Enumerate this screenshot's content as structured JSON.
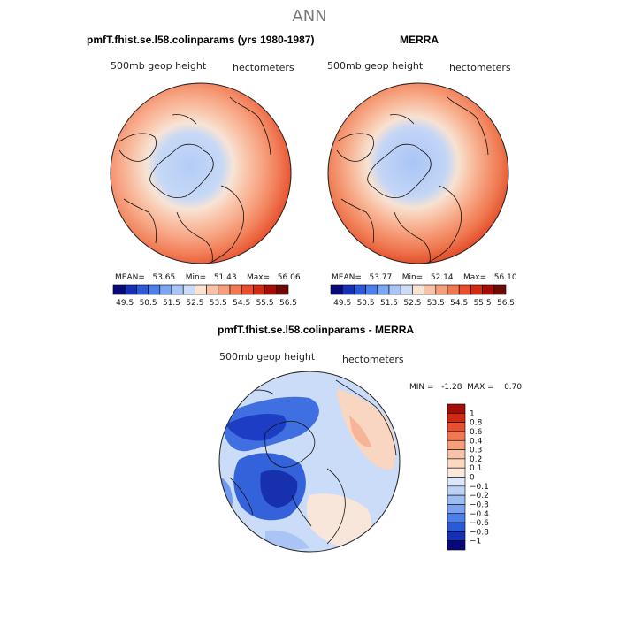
{
  "title": "ANN",
  "panels": [
    {
      "title": "pmfT.fhist.se.l58.colinparams (yrs 1980-1987)",
      "field_label": "500mb geop height",
      "units": "hectometers",
      "mean_label": "MEAN=",
      "mean": "53.65",
      "min_label": "Min=",
      "min": "51.43",
      "max_label": "Max=",
      "max": "56.06"
    },
    {
      "title": "MERRA",
      "field_label": "500mb geop height",
      "units": "hectometers",
      "mean_label": "MEAN=",
      "mean": "53.77",
      "min_label": "Min=",
      "min": "52.14",
      "max_label": "Max=",
      "max": "56.10"
    }
  ],
  "diff_panel": {
    "title": "pmfT.fhist.se.l58.colinparams - MERRA",
    "field_label": "500mb geop height",
    "units": "hectometers",
    "stats": "MIN =   -1.28  MAX =    0.70"
  },
  "chart_data": [
    {
      "type": "heatmap",
      "projection": "north-polar-stereographic",
      "colorbar": {
        "orientation": "horizontal",
        "tick_labels": [
          "49.5",
          "50.5",
          "51.5",
          "52.5",
          "53.5",
          "54.5",
          "55.5",
          "56.5"
        ],
        "colors": [
          "#08087a",
          "#1530b4",
          "#2a5ad8",
          "#4a80ec",
          "#7aa6f4",
          "#a8c4f8",
          "#ccdcf8",
          "#f9e4d4",
          "#f9c2a6",
          "#f79e7a",
          "#f27852",
          "#e94e2e",
          "#d22a10",
          "#a40d05",
          "#6e0a05"
        ]
      },
      "stats": {
        "mean": 53.65,
        "min": 51.43,
        "max": 56.06
      }
    },
    {
      "type": "heatmap",
      "projection": "north-polar-stereographic",
      "colorbar": {
        "orientation": "horizontal",
        "tick_labels": [
          "49.5",
          "50.5",
          "51.5",
          "52.5",
          "53.5",
          "54.5",
          "55.5",
          "56.5"
        ],
        "colors": [
          "#08087a",
          "#1530b4",
          "#2a5ad8",
          "#4a80ec",
          "#7aa6f4",
          "#a8c4f8",
          "#ccdcf8",
          "#f9e4d4",
          "#f9c2a6",
          "#f79e7a",
          "#f27852",
          "#e94e2e",
          "#d22a10",
          "#a40d05",
          "#6e0a05"
        ]
      },
      "stats": {
        "mean": 53.77,
        "min": 52.14,
        "max": 56.1
      }
    },
    {
      "type": "heatmap",
      "projection": "north-polar-stereographic",
      "colorbar": {
        "orientation": "vertical",
        "tick_labels": [
          "1",
          "0.8",
          "0.6",
          "0.4",
          "0.3",
          "0.2",
          "0.1",
          "0",
          "-0.1",
          "-0.2",
          "-0.3",
          "-0.4",
          "-0.6",
          "-0.8",
          "-1"
        ],
        "colors": [
          "#a40d05",
          "#d22a10",
          "#e94e2e",
          "#f27852",
          "#f79e7a",
          "#f9c2a6",
          "#fbd8c0",
          "#fbeadc",
          "#dce8fa",
          "#bcd2f6",
          "#9cbcf2",
          "#7aa2ee",
          "#4a80ec",
          "#2a5ad8",
          "#1530b4",
          "#08087a"
        ]
      },
      "stats": {
        "min": -1.28,
        "max": 0.7
      }
    }
  ]
}
